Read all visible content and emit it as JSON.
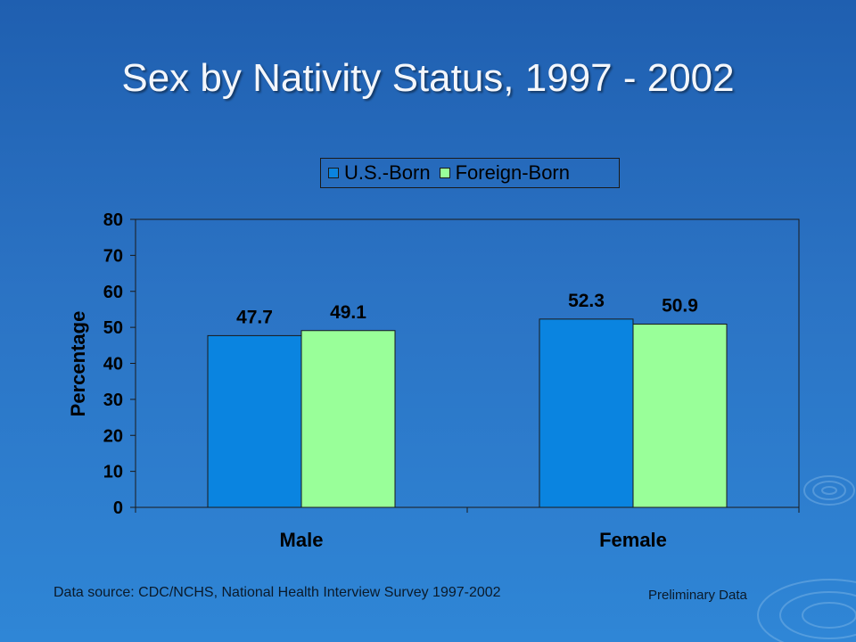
{
  "slide": {
    "title": "Sex by Nativity Status, 1997 - 2002",
    "footer_source": "Data source: CDC/NCHS, National Health Interview Survey 1997-2002",
    "footer_note": "Preliminary Data"
  },
  "chart_data": {
    "type": "bar",
    "title": "",
    "xlabel": "",
    "ylabel": "Percentage",
    "categories": [
      "Male",
      "Female"
    ],
    "series": [
      {
        "name": "U.S.-Born",
        "values": [
          47.7,
          52.3
        ],
        "color": "#0a84e0"
      },
      {
        "name": "Foreign-Born",
        "values": [
          49.1,
          50.9
        ],
        "color": "#99ff99"
      }
    ],
    "ylim": [
      0,
      80
    ],
    "yticks": [
      0,
      10,
      20,
      30,
      40,
      50,
      60,
      70,
      80
    ],
    "grid": false,
    "legend_position": "top"
  }
}
